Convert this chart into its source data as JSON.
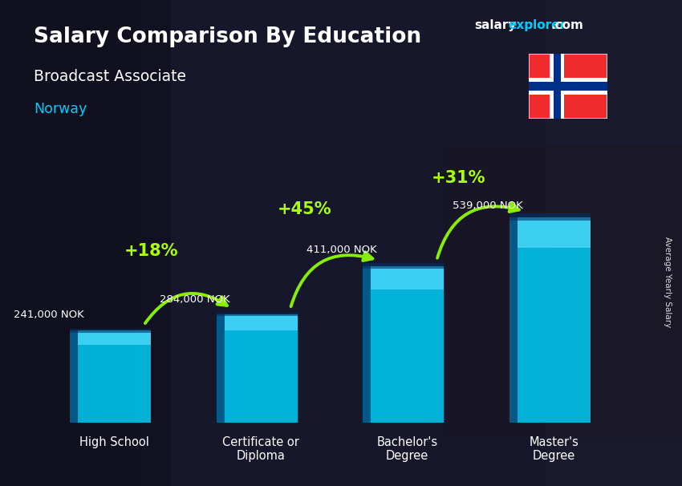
{
  "title": "Salary Comparison By Education",
  "subtitle1": "Broadcast Associate",
  "subtitle2": "Norway",
  "categories": [
    "High School",
    "Certificate or\nDiploma",
    "Bachelor's\nDegree",
    "Master's\nDegree"
  ],
  "values": [
    241000,
    284000,
    411000,
    539000
  ],
  "labels": [
    "241,000 NOK",
    "284,000 NOK",
    "411,000 NOK",
    "539,000 NOK"
  ],
  "pct_changes": [
    "+18%",
    "+45%",
    "+31%"
  ],
  "bar_color": "#00c8f0",
  "bar_color_light": "#55ddff",
  "bar_color_dark": "#0099cc",
  "bar_color_side": "#006699",
  "bg_color": "#1a1a2e",
  "text_white": "#ffffff",
  "text_cyan": "#00ccff",
  "text_green": "#aaff00",
  "arrow_green": "#88ee00",
  "brand_color_salary": "#ffffff",
  "brand_color_explorer": "#00ccff",
  "brand_color_com": "#ffffff",
  "ylabel_text": "Average Yearly Salary",
  "ylim_max": 700000,
  "flag_red": "#ef2b2d",
  "flag_white": "#ffffff",
  "flag_blue": "#003087"
}
